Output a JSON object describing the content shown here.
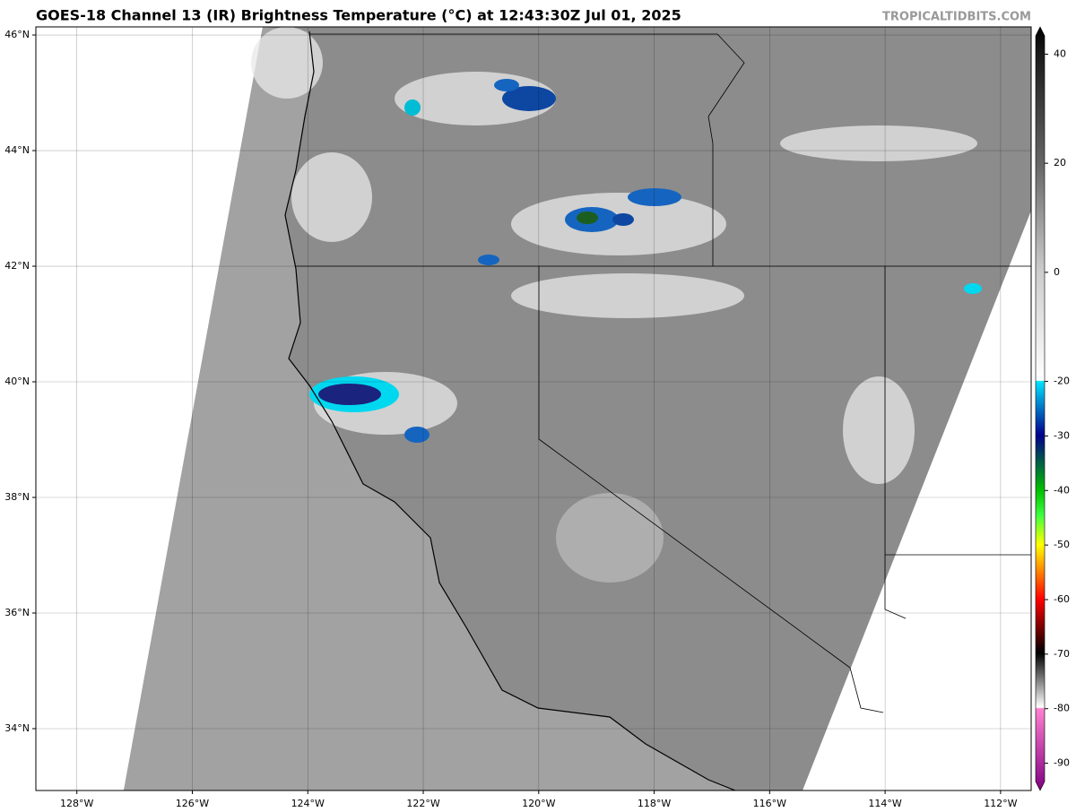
{
  "header": {
    "title": "GOES-18 Channel 13 (IR) Brightness Temperature (°C) at 12:43:30Z Jul 01, 2025",
    "watermark": "TROPICALTIDBITS.COM"
  },
  "map": {
    "lonlim": [
      -128.71,
      -111.47
    ],
    "latlim": [
      32.93,
      46.14
    ],
    "grid": true,
    "xticks": [
      {
        "value": -128,
        "label": "128°W"
      },
      {
        "value": -126,
        "label": "126°W"
      },
      {
        "value": -124,
        "label": "124°W"
      },
      {
        "value": -122,
        "label": "122°W"
      },
      {
        "value": -120,
        "label": "120°W"
      },
      {
        "value": -118,
        "label": "118°W"
      },
      {
        "value": -116,
        "label": "116°W"
      },
      {
        "value": -114,
        "label": "114°W"
      },
      {
        "value": -112,
        "label": "112°W"
      }
    ],
    "yticks": [
      {
        "value": 34,
        "label": "34°N"
      },
      {
        "value": 36,
        "label": "36°N"
      },
      {
        "value": 38,
        "label": "38°N"
      },
      {
        "value": 40,
        "label": "40°N"
      },
      {
        "value": 42,
        "label": "42°N"
      },
      {
        "value": 44,
        "label": "44°N"
      },
      {
        "value": 46,
        "label": "46°N"
      }
    ]
  },
  "colorbar": {
    "lim": [
      -95,
      45
    ],
    "ticks": [
      40,
      20,
      0,
      -20,
      -30,
      -40,
      -50,
      -60,
      -70,
      -80,
      -90
    ]
  }
}
